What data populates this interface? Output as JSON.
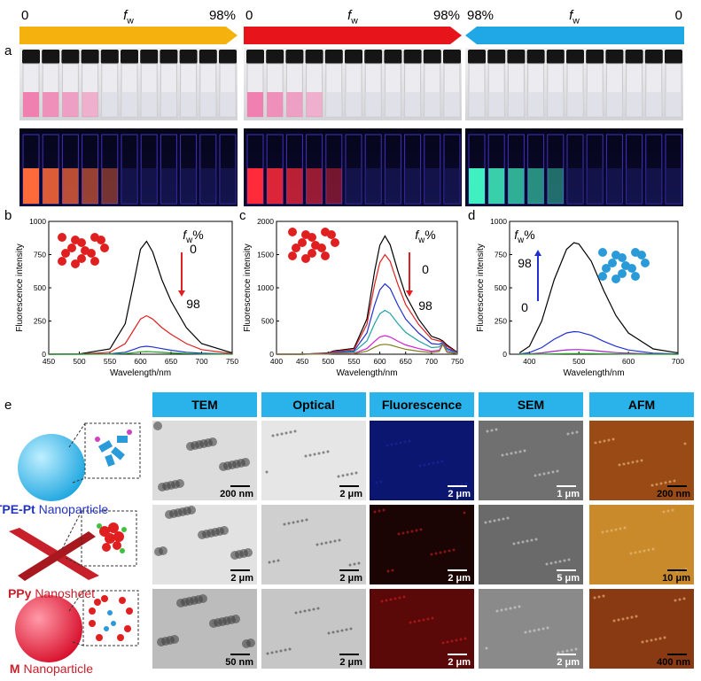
{
  "figure": {
    "arrows": [
      {
        "left": "0",
        "symbol": "f",
        "sub": "w",
        "right": "98%"
      },
      {
        "left": "0",
        "symbol": "f",
        "sub": "w",
        "right": "98%"
      },
      {
        "left": "98%",
        "symbol": "f",
        "sub": "w",
        "right": "0"
      }
    ],
    "panel_labels": [
      "a",
      "b",
      "c",
      "d",
      "e"
    ]
  },
  "chart_data": [
    {
      "type": "line",
      "xlabel": "Wavelength/nm",
      "ylabel": "Fluorescence intensity",
      "x": [
        450,
        500,
        550,
        575,
        590,
        600,
        610,
        620,
        635,
        650,
        675,
        700,
        750
      ],
      "series": [
        {
          "color": "#000000",
          "values": [
            0,
            2,
            40,
            230,
            560,
            790,
            850,
            770,
            560,
            400,
            200,
            80,
            10
          ]
        },
        {
          "color": "#e02020",
          "values": [
            0,
            1,
            15,
            80,
            190,
            265,
            290,
            265,
            200,
            150,
            80,
            35,
            5
          ]
        },
        {
          "color": "#2030d0",
          "values": [
            0,
            0,
            3,
            15,
            38,
            55,
            60,
            55,
            42,
            30,
            15,
            7,
            1
          ]
        },
        {
          "color": "#20a020",
          "values": [
            0,
            0,
            1,
            5,
            12,
            18,
            20,
            18,
            14,
            10,
            5,
            2,
            0
          ]
        }
      ],
      "xlim": [
        450,
        750
      ],
      "ylim": [
        0,
        1000
      ],
      "xticks": [
        450,
        500,
        550,
        600,
        650,
        700,
        750
      ],
      "yticks": [
        0,
        250,
        500,
        750,
        1000
      ],
      "annotation": {
        "symbol": "f",
        "sub": "w",
        "unit": "%",
        "top": "0",
        "bottom": "98"
      }
    },
    {
      "type": "line",
      "xlabel": "Wavelength/nm",
      "ylabel": "Fluorescence intensity",
      "x": [
        400,
        450,
        500,
        510,
        550,
        575,
        590,
        600,
        610,
        620,
        635,
        650,
        675,
        700,
        715,
        722,
        730,
        750
      ],
      "series": [
        {
          "color": "#000000",
          "values": [
            0,
            0,
            20,
            50,
            90,
            530,
            1250,
            1640,
            1780,
            1650,
            1250,
            890,
            530,
            270,
            230,
            200,
            140,
            30
          ]
        },
        {
          "color": "#e02020",
          "values": [
            0,
            0,
            15,
            40,
            70,
            450,
            1050,
            1380,
            1500,
            1400,
            1050,
            750,
            450,
            230,
            200,
            190,
            120,
            25
          ]
        },
        {
          "color": "#2030d0",
          "values": [
            0,
            0,
            10,
            30,
            50,
            320,
            740,
            970,
            1060,
            990,
            740,
            530,
            320,
            160,
            150,
            180,
            90,
            20
          ]
        },
        {
          "color": "#20a0a0",
          "values": [
            0,
            0,
            8,
            20,
            35,
            200,
            460,
            610,
            660,
            615,
            460,
            330,
            200,
            100,
            110,
            170,
            70,
            15
          ]
        },
        {
          "color": "#d020d0",
          "values": [
            0,
            0,
            5,
            15,
            15,
            85,
            195,
            260,
            280,
            260,
            195,
            140,
            85,
            45,
            60,
            160,
            40,
            10
          ]
        },
        {
          "color": "#808020",
          "values": [
            0,
            0,
            3,
            10,
            8,
            45,
            105,
            140,
            150,
            140,
            105,
            75,
            45,
            25,
            40,
            150,
            30,
            8
          ]
        }
      ],
      "xlim": [
        400,
        750
      ],
      "ylim": [
        0,
        2000
      ],
      "xticks": [
        400,
        450,
        500,
        550,
        600,
        650,
        700,
        750
      ],
      "yticks": [
        0,
        500,
        1000,
        1500,
        2000
      ],
      "annotation": {
        "symbol": "f",
        "sub": "w",
        "unit": "%",
        "top": "0",
        "bottom": "98"
      }
    },
    {
      "type": "line",
      "xlabel": "Wavelength/nm",
      "ylabel": "Fluorescence intensity",
      "x": [
        380,
        400,
        425,
        450,
        475,
        490,
        500,
        525,
        550,
        575,
        600,
        650,
        700
      ],
      "series": [
        {
          "color": "#000000",
          "values": [
            10,
            60,
            250,
            560,
            790,
            840,
            830,
            700,
            480,
            290,
            160,
            40,
            10
          ]
        },
        {
          "color": "#2030d0",
          "values": [
            2,
            12,
            50,
            113,
            160,
            170,
            168,
            142,
            97,
            59,
            32,
            8,
            2
          ]
        },
        {
          "color": "#a020c0",
          "values": [
            0,
            2,
            10,
            23,
            33,
            35,
            35,
            29,
            20,
            12,
            7,
            2,
            0
          ]
        },
        {
          "color": "#20a020",
          "values": [
            0,
            0,
            1,
            3,
            4,
            5,
            5,
            4,
            3,
            2,
            1,
            0,
            0
          ]
        }
      ],
      "xlim": [
        360,
        700
      ],
      "ylim": [
        0,
        1000
      ],
      "xticks": [
        400,
        500,
        600,
        700
      ],
      "yticks": [
        0,
        250,
        500,
        750,
        1000
      ],
      "annotation": {
        "symbol": "f",
        "sub": "w",
        "unit": "%",
        "top": "98",
        "bottom": "0"
      }
    }
  ],
  "table": {
    "columns": [
      "TEM",
      "Optical",
      "Fluorescence",
      "SEM",
      "AFM"
    ],
    "rows": [
      {
        "name": "TPE-Pt",
        "suffix": "Nanoparticle",
        "scale_bars": [
          "200 nm",
          "2 μm",
          "2 μm",
          "1 μm",
          "200 nm"
        ]
      },
      {
        "name": "PPy",
        "suffix": "Nanosheet",
        "scale_bars": [
          "2 μm",
          "2 μm",
          "2 μm",
          "5 μm",
          "10 μm"
        ]
      },
      {
        "name": "M",
        "suffix": "Nanoparticle",
        "scale_bars": [
          "50 nm",
          "2 μm",
          "2 μm",
          "2 μm",
          "400 nm"
        ]
      }
    ]
  }
}
